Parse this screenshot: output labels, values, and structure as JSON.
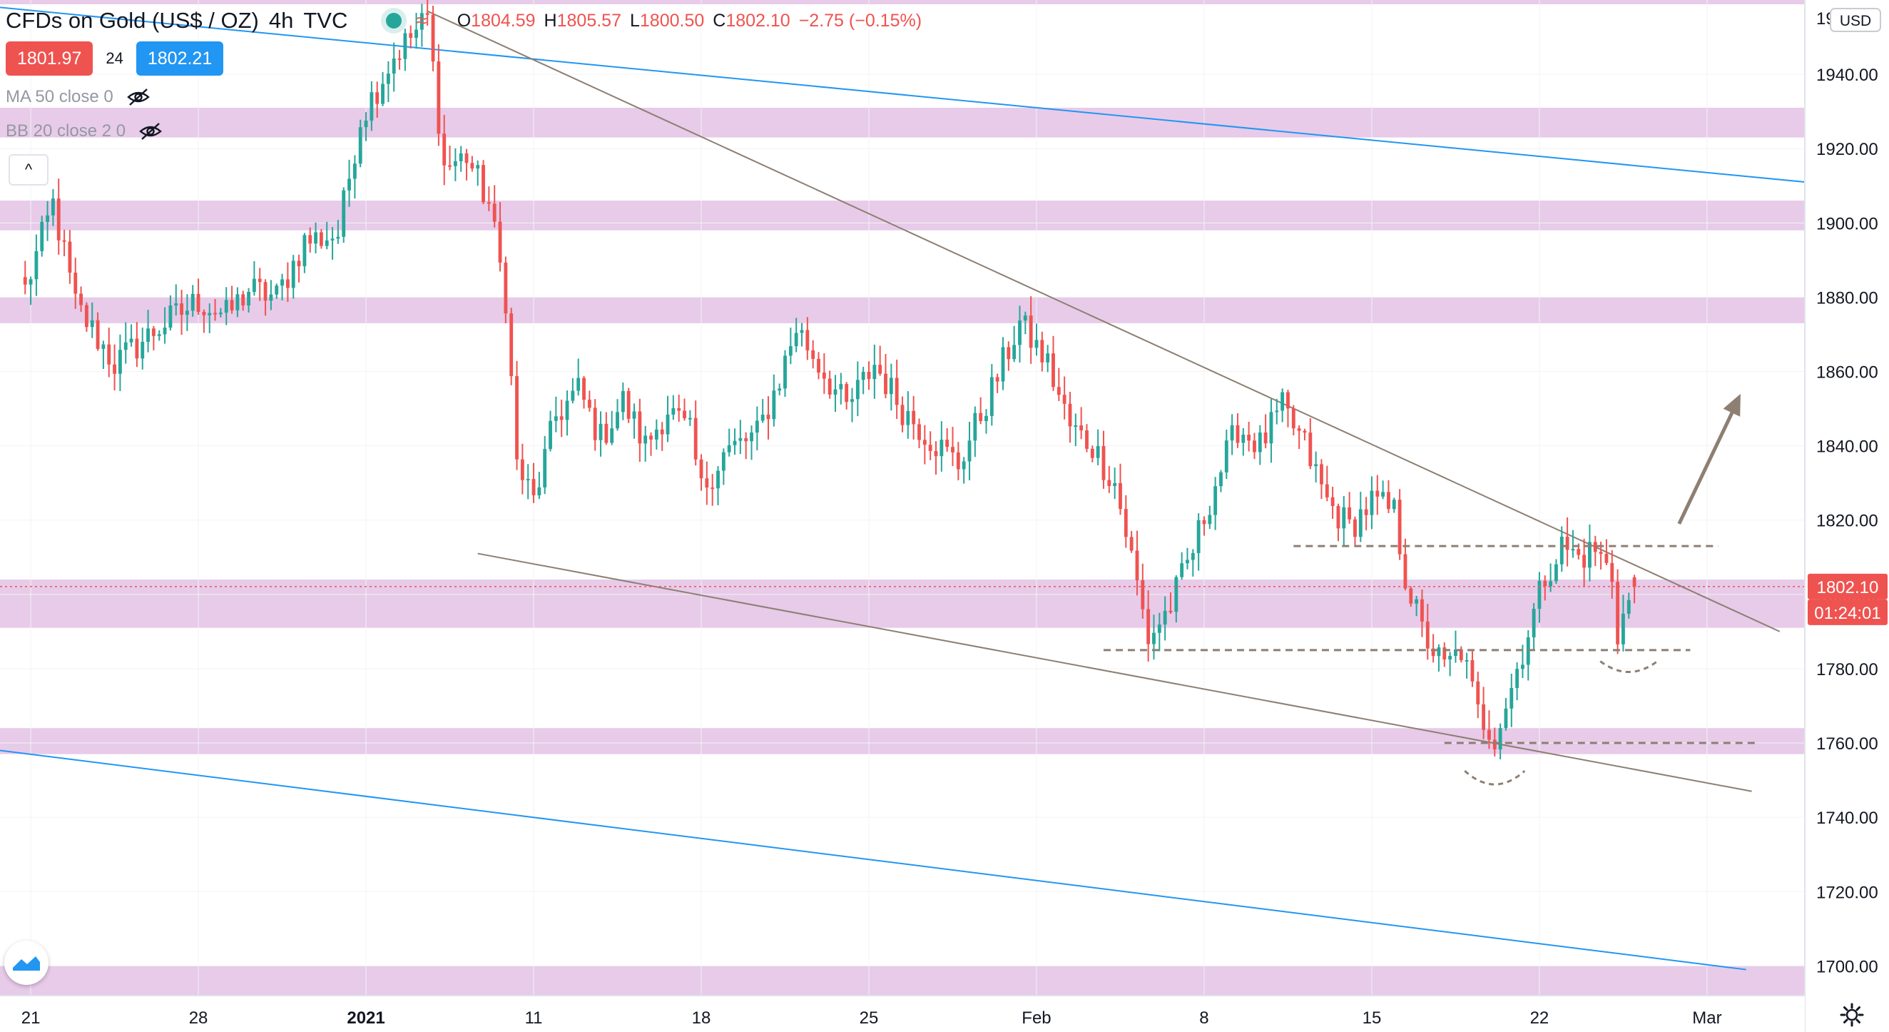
{
  "header": {
    "symbol": "CFDs on Gold (US$ / OZ)",
    "interval": "4h",
    "source": "TVC",
    "ohlc": {
      "o_label": "O",
      "o": "1804.59",
      "h_label": "H",
      "h": "1805.57",
      "l_label": "L",
      "l": "1800.50",
      "c_label": "C",
      "c": "1802.10",
      "change": "−2.75 (−0.15%)"
    }
  },
  "trade": {
    "sell": "1801.97",
    "spread": "24",
    "buy": "1802.21"
  },
  "indicators": [
    {
      "label": "MA 50 close 0"
    },
    {
      "label": "BB 20 close 2 0"
    }
  ],
  "price_axis": {
    "currency": "USD",
    "last_price": "1802.10",
    "countdown": "01:24:01"
  },
  "colors": {
    "up": "#26a69a",
    "down": "#ef5350",
    "zone": "#e7cbe9",
    "trend": "#8d7f72",
    "channel": "#2196f3",
    "last_tag": "#ef5350"
  },
  "icons": [
    "eye-off-icon",
    "chevron-up-icon",
    "tradingview-logo-icon",
    "gear-icon"
  ],
  "chart_data": {
    "type": "candlestick",
    "ylim": [
      1692,
      1960
    ],
    "y_ticks": [
      1700,
      1720,
      1740,
      1760,
      1780,
      1800,
      1820,
      1840,
      1860,
      1880,
      1900,
      1920,
      1940
    ],
    "x_ticks": [
      {
        "label": "21",
        "idx": 1
      },
      {
        "label": "28",
        "idx": 31
      },
      {
        "label": "2021",
        "idx": 61,
        "bold": true
      },
      {
        "label": "11",
        "idx": 91
      },
      {
        "label": "18",
        "idx": 121
      },
      {
        "label": "25",
        "idx": 151
      },
      {
        "label": "Feb",
        "idx": 181
      },
      {
        "label": "8",
        "idx": 211
      },
      {
        "label": "15",
        "idx": 241
      },
      {
        "label": "22",
        "idx": 271
      },
      {
        "label": "Mar",
        "idx": 301
      }
    ],
    "x_range": [
      -4.5,
      318.5
    ],
    "zones": [
      [
        1923,
        1931
      ],
      [
        1898,
        1906
      ],
      [
        1873,
        1880
      ],
      [
        1791,
        1804
      ],
      [
        1757,
        1764
      ],
      [
        1691,
        1700
      ]
    ],
    "key_points": [
      {
        "idx": 0,
        "price": 1882
      },
      {
        "idx": 5,
        "price": 1905
      },
      {
        "idx": 9,
        "price": 1878
      },
      {
        "idx": 16,
        "price": 1862
      },
      {
        "idx": 24,
        "price": 1872
      },
      {
        "idx": 31,
        "price": 1879
      },
      {
        "idx": 36,
        "price": 1875
      },
      {
        "idx": 40,
        "price": 1882
      },
      {
        "idx": 45,
        "price": 1880
      },
      {
        "idx": 50,
        "price": 1895
      },
      {
        "idx": 56,
        "price": 1897
      },
      {
        "idx": 60,
        "price": 1928
      },
      {
        "idx": 66,
        "price": 1945
      },
      {
        "idx": 72,
        "price": 1955
      },
      {
        "idx": 75,
        "price": 1915
      },
      {
        "idx": 79,
        "price": 1918
      },
      {
        "idx": 83,
        "price": 1905
      },
      {
        "idx": 86,
        "price": 1880
      },
      {
        "idx": 88,
        "price": 1835
      },
      {
        "idx": 91,
        "price": 1825
      },
      {
        "idx": 95,
        "price": 1848
      },
      {
        "idx": 99,
        "price": 1855
      },
      {
        "idx": 103,
        "price": 1842
      },
      {
        "idx": 107,
        "price": 1852
      },
      {
        "idx": 111,
        "price": 1840
      },
      {
        "idx": 115,
        "price": 1850
      },
      {
        "idx": 119,
        "price": 1843
      },
      {
        "idx": 121,
        "price": 1828
      },
      {
        "idx": 125,
        "price": 1838
      },
      {
        "idx": 131,
        "price": 1843
      },
      {
        "idx": 135,
        "price": 1858
      },
      {
        "idx": 138,
        "price": 1872
      },
      {
        "idx": 142,
        "price": 1862
      },
      {
        "idx": 147,
        "price": 1850
      },
      {
        "idx": 152,
        "price": 1862
      },
      {
        "idx": 157,
        "price": 1850
      },
      {
        "idx": 162,
        "price": 1842
      },
      {
        "idx": 167,
        "price": 1835
      },
      {
        "idx": 173,
        "price": 1855
      },
      {
        "idx": 178,
        "price": 1873
      },
      {
        "idx": 183,
        "price": 1862
      },
      {
        "idx": 187,
        "price": 1845
      },
      {
        "idx": 191,
        "price": 1840
      },
      {
        "idx": 195,
        "price": 1830
      },
      {
        "idx": 198,
        "price": 1810
      },
      {
        "idx": 201,
        "price": 1788
      },
      {
        "idx": 205,
        "price": 1797
      },
      {
        "idx": 209,
        "price": 1812
      },
      {
        "idx": 213,
        "price": 1830
      },
      {
        "idx": 217,
        "price": 1845
      },
      {
        "idx": 221,
        "price": 1840
      },
      {
        "idx": 225,
        "price": 1850
      },
      {
        "idx": 229,
        "price": 1840
      },
      {
        "idx": 233,
        "price": 1825
      },
      {
        "idx": 237,
        "price": 1818
      },
      {
        "idx": 241,
        "price": 1825
      },
      {
        "idx": 245,
        "price": 1822
      },
      {
        "idx": 247,
        "price": 1805
      },
      {
        "idx": 250,
        "price": 1790
      },
      {
        "idx": 254,
        "price": 1780
      },
      {
        "idx": 257,
        "price": 1785
      },
      {
        "idx": 260,
        "price": 1768
      },
      {
        "idx": 263,
        "price": 1762
      },
      {
        "idx": 266,
        "price": 1775
      },
      {
        "idx": 269,
        "price": 1790
      },
      {
        "idx": 272,
        "price": 1805
      },
      {
        "idx": 275,
        "price": 1813
      },
      {
        "idx": 278,
        "price": 1810
      },
      {
        "idx": 281,
        "price": 1812
      },
      {
        "idx": 284,
        "price": 1805
      },
      {
        "idx": 285,
        "price": 1790
      },
      {
        "idx": 288,
        "price": 1802
      }
    ],
    "lines": [
      {
        "kind": "channel",
        "from": [
          -4.5,
          1958
        ],
        "to": [
          318.5,
          1911
        ]
      },
      {
        "kind": "channel",
        "from": [
          -4.5,
          1758
        ],
        "to": [
          308,
          1699
        ]
      },
      {
        "kind": "trend",
        "from": [
          72,
          1957
        ],
        "to": [
          314,
          1790
        ]
      },
      {
        "kind": "trend",
        "from": [
          81,
          1811
        ],
        "to": [
          309,
          1747
        ]
      }
    ],
    "dashed_levels": [
      {
        "price": 1813,
        "from": 227,
        "to": 303
      },
      {
        "price": 1785,
        "from": 193,
        "to": 298
      },
      {
        "price": 1760,
        "from": 254,
        "to": 310
      }
    ],
    "last_price": 1802.1,
    "y_tick_format": "fixed2"
  }
}
